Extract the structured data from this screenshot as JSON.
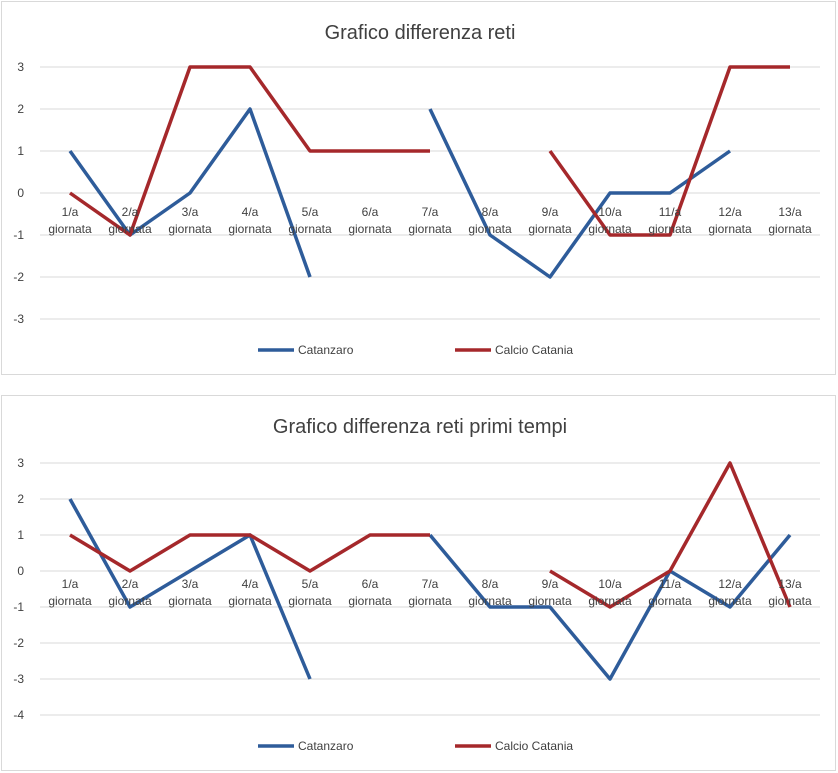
{
  "chart_data": [
    {
      "type": "line",
      "title": "Grafico differenza reti",
      "categories": [
        "1/a giornata",
        "2/a giornata",
        "3/a giornata",
        "4/a giornata",
        "5/a giornata",
        "6/a giornata",
        "7/a giornata",
        "8/a giornata",
        "9/a giornata",
        "10/a giornata",
        "11/a giornata",
        "12/a giornata",
        "13/a giornata"
      ],
      "ylim": [
        -3,
        3
      ],
      "yticks": [
        3,
        2,
        1,
        0,
        -1,
        -2,
        -3
      ],
      "grid": true,
      "legend": "bottom",
      "series": [
        {
          "name": "Catanzaro",
          "color": "#2e5c9a",
          "values": [
            1,
            -1,
            0,
            2,
            -2,
            null,
            2,
            -1,
            -2,
            0,
            0,
            1,
            null
          ]
        },
        {
          "name": "Calcio Catania",
          "color": "#a5282b",
          "values": [
            0,
            -1,
            3,
            3,
            1,
            1,
            1,
            null,
            1,
            -1,
            -1,
            3,
            3
          ]
        }
      ]
    },
    {
      "type": "line",
      "title": "Grafico differenza reti primi tempi",
      "categories": [
        "1/a giornata",
        "2/a giornata",
        "3/a giornata",
        "4/a giornata",
        "5/a giornata",
        "6/a giornata",
        "7/a giornata",
        "8/a giornata",
        "9/a giornata",
        "10/a giornata",
        "11/a giornata",
        "12/a giornata",
        "13/a giornata"
      ],
      "ylim": [
        -4,
        3
      ],
      "yticks": [
        3,
        2,
        1,
        0,
        -1,
        -2,
        -3,
        -4
      ],
      "grid": true,
      "legend": "bottom",
      "series": [
        {
          "name": "Catanzaro",
          "color": "#2e5c9a",
          "values": [
            2,
            -1,
            0,
            1,
            -3,
            null,
            1,
            -1,
            -1,
            -3,
            0,
            -1,
            1
          ]
        },
        {
          "name": "Calcio Catania",
          "color": "#a5282b",
          "values": [
            1,
            0,
            1,
            1,
            0,
            1,
            1,
            null,
            0,
            -1,
            0,
            3,
            -1
          ]
        }
      ]
    }
  ]
}
